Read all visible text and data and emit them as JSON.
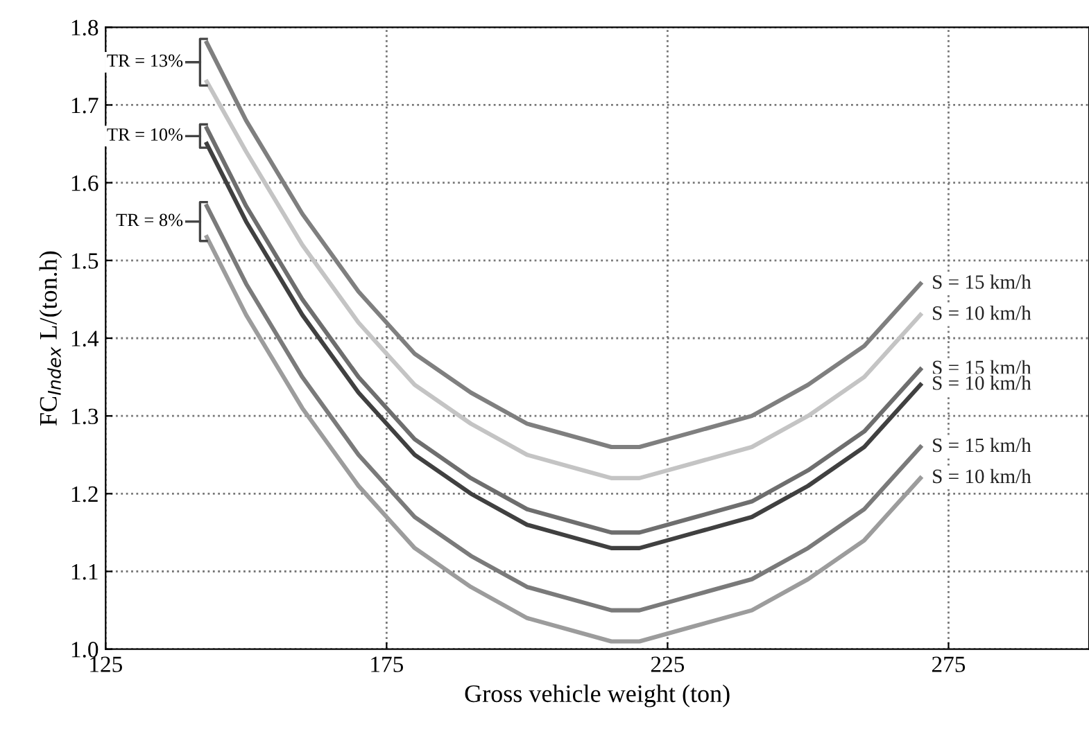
{
  "chart_data": {
    "type": "line",
    "xlabel": "Gross vehicle weight (ton)",
    "ylabel": "FC$_{Index}$ L/(ton.h)",
    "xlim": [
      125,
      300
    ],
    "ylim": [
      1.0,
      1.8
    ],
    "xticks": [
      125,
      175,
      225,
      275
    ],
    "yticks": [
      {
        "value": 1.0,
        "label": "1.0"
      },
      {
        "value": 1.1,
        "label": "1.1"
      },
      {
        "value": 1.2,
        "label": "1.2"
      },
      {
        "value": 1.3,
        "label": "1.3"
      },
      {
        "value": 1.4,
        "label": "1.4"
      },
      {
        "value": 1.5,
        "label": "1.5"
      },
      {
        "value": 1.6,
        "label": "1.6"
      },
      {
        "value": 1.7,
        "label": "1.7"
      },
      {
        "value": 1.8,
        "label": "1.8"
      }
    ],
    "grid": true,
    "legend": false,
    "marker": "none",
    "line_style": "solid",
    "x": [
      143,
      150,
      160,
      170,
      180,
      190,
      200,
      210,
      215,
      220,
      230,
      240,
      250,
      260,
      270
    ],
    "series": [
      {
        "name": "S = 15 km/h",
        "color": "#7f7f7f",
        "values": [
          1.78,
          1.68,
          1.56,
          1.46,
          1.38,
          1.33,
          1.29,
          1.27,
          1.26,
          1.26,
          1.28,
          1.3,
          1.34,
          1.39,
          1.47
        ]
      },
      {
        "name": "S = 10 km/h",
        "color": "#c4c4c4",
        "values": [
          1.73,
          1.64,
          1.52,
          1.42,
          1.34,
          1.29,
          1.25,
          1.23,
          1.22,
          1.22,
          1.24,
          1.26,
          1.3,
          1.35,
          1.43
        ]
      },
      {
        "name": "S = 15 km/h",
        "color": "#6e6e6e",
        "values": [
          1.67,
          1.57,
          1.45,
          1.35,
          1.27,
          1.22,
          1.18,
          1.16,
          1.15,
          1.15,
          1.17,
          1.19,
          1.23,
          1.28,
          1.36
        ]
      },
      {
        "name": "S = 10 km/h",
        "color": "#404040",
        "values": [
          1.65,
          1.55,
          1.43,
          1.33,
          1.25,
          1.2,
          1.16,
          1.14,
          1.13,
          1.13,
          1.15,
          1.17,
          1.21,
          1.26,
          1.34
        ]
      },
      {
        "name": "S = 15 km/h",
        "color": "#7a7a7a",
        "values": [
          1.57,
          1.47,
          1.35,
          1.25,
          1.17,
          1.12,
          1.08,
          1.06,
          1.05,
          1.05,
          1.07,
          1.09,
          1.13,
          1.18,
          1.26
        ]
      },
      {
        "name": "S = 10 km/h",
        "color": "#9c9c9c",
        "values": [
          1.53,
          1.43,
          1.31,
          1.21,
          1.13,
          1.08,
          1.04,
          1.02,
          1.01,
          1.01,
          1.03,
          1.05,
          1.09,
          1.14,
          1.22
        ]
      }
    ],
    "annotations": [
      "TR = 13%",
      "TR = 10%",
      "TR = 8%"
    ]
  }
}
